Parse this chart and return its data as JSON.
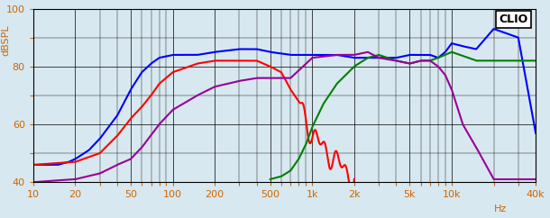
{
  "title": "CLIO",
  "ylabel": "dBSPL",
  "xlabel": "Hz",
  "xlim": [
    10,
    40000
  ],
  "ylim": [
    40,
    100
  ],
  "yticks": [
    40,
    60,
    80,
    100
  ],
  "bg_color": "#d8e8f0",
  "plot_bg_color": "#d8e8f0",
  "grid_color": "#000000",
  "colors": {
    "blue": "#0000ff",
    "red": "#ff0000",
    "green": "#008000",
    "purple": "#990099"
  },
  "blue": {
    "freqs": [
      10,
      12,
      15,
      18,
      20,
      25,
      30,
      40,
      50,
      60,
      70,
      80,
      100,
      150,
      200,
      300,
      400,
      500,
      700,
      1000,
      1500,
      2000,
      3000,
      4000,
      5000,
      6000,
      7000,
      8000,
      9000,
      10000,
      12000,
      15000,
      20000,
      30000,
      40000
    ],
    "spl": [
      46,
      46,
      46,
      47,
      48,
      51,
      55,
      63,
      72,
      78,
      81,
      83,
      84,
      84,
      85,
      86,
      86,
      85,
      84,
      84,
      84,
      83,
      83,
      83,
      84,
      84,
      84,
      83,
      85,
      88,
      87,
      86,
      93,
      90,
      57
    ]
  },
  "red": {
    "freqs": [
      10,
      20,
      30,
      40,
      50,
      60,
      70,
      80,
      100,
      150,
      200,
      300,
      400,
      500,
      600,
      700,
      800,
      900,
      1000,
      1200,
      1500,
      2000
    ],
    "spl": [
      46,
      47,
      50,
      56,
      62,
      66,
      70,
      74,
      78,
      81,
      82,
      82,
      82,
      80,
      78,
      72,
      68,
      62,
      56,
      52,
      47,
      41
    ]
  },
  "green": {
    "freqs": [
      500,
      600,
      700,
      800,
      900,
      1000,
      1200,
      1500,
      2000,
      2500,
      3000,
      4000,
      5000,
      6000,
      7000,
      8000,
      10000,
      15000,
      20000,
      40000
    ],
    "spl": [
      41,
      42,
      44,
      48,
      53,
      59,
      67,
      74,
      80,
      83,
      84,
      82,
      81,
      82,
      82,
      83,
      85,
      82,
      82,
      82
    ]
  },
  "purple": {
    "freqs": [
      10,
      20,
      30,
      40,
      50,
      60,
      80,
      100,
      150,
      200,
      300,
      400,
      500,
      700,
      1000,
      1500,
      2000,
      2500,
      3000,
      4000,
      5000,
      6000,
      7000,
      8000,
      9000,
      10000,
      12000,
      15000,
      20000,
      40000
    ],
    "spl": [
      40,
      41,
      43,
      46,
      48,
      52,
      60,
      65,
      70,
      73,
      75,
      76,
      76,
      76,
      83,
      84,
      84,
      85,
      83,
      82,
      81,
      82,
      82,
      80,
      77,
      72,
      60,
      52,
      41,
      41
    ]
  }
}
